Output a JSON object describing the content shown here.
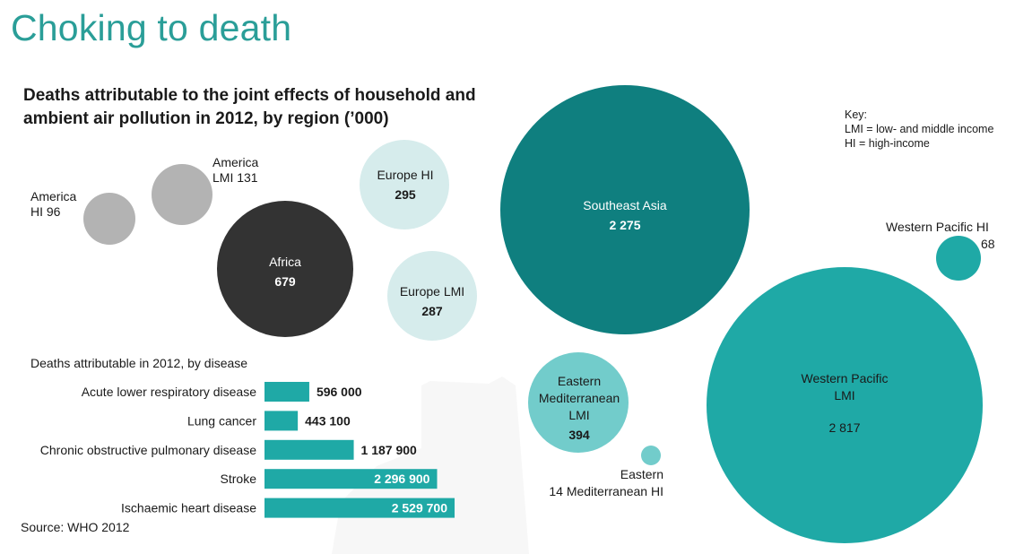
{
  "header": {
    "title": "Choking to death",
    "subtitle": "Deaths attributable to the joint effects of household and ambient air pollution in 2012, by region (’000)"
  },
  "key": {
    "heading": "Key:",
    "lmi": "LMI = low- and middle income",
    "hi": "HI = high-income"
  },
  "colors": {
    "teal_dark": "#0f7f7f",
    "teal_mid": "#1fa9a6",
    "teal_light": "#72cccb",
    "pale_blue": "#d6ecec",
    "grey": "#b3b3b3",
    "black": "#333333",
    "title": "#2a9e98"
  },
  "source": "Source: WHO 2012",
  "chart_data": [
    {
      "type": "bubble",
      "title": "Deaths attributable to the joint effects of household and ambient air pollution in 2012, by region (’000)",
      "unit": "'000 deaths",
      "regions": [
        {
          "name_lines": [
            "America",
            "HI 96"
          ],
          "label": "America HI",
          "value": 96,
          "value_text": "96"
        },
        {
          "name_lines": [
            "America",
            "LMI 131"
          ],
          "label": "America LMI",
          "value": 131,
          "value_text": "131"
        },
        {
          "name_lines": [
            "Africa"
          ],
          "label": "Africa",
          "value": 679,
          "value_text": "679"
        },
        {
          "name_lines": [
            "Europe HI"
          ],
          "label": "Europe HI",
          "value": 295,
          "value_text": "295"
        },
        {
          "name_lines": [
            "Europe LMI"
          ],
          "label": "Europe LMI",
          "value": 287,
          "value_text": "287"
        },
        {
          "name_lines": [
            "Southeast Asia"
          ],
          "label": "Southeast Asia",
          "value": 2275,
          "value_text": "2 275"
        },
        {
          "name_lines": [
            "Western Pacific HI"
          ],
          "label": "Western Pacific HI",
          "value": 68,
          "value_text": "68"
        },
        {
          "name_lines": [
            "Western Pacific",
            "LMI"
          ],
          "label": "Western Pacific LMI",
          "value": 2817,
          "value_text": "2 817"
        },
        {
          "name_lines": [
            "Eastern",
            "Mediterranean",
            "LMI"
          ],
          "label": "Eastern Mediterranean LMI",
          "value": 394,
          "value_text": "394"
        },
        {
          "name_lines": [
            "Eastern",
            "14  Mediterranean HI"
          ],
          "label": "Eastern Mediterranean HI",
          "value": 14,
          "value_text": "14"
        }
      ]
    },
    {
      "type": "bar",
      "orientation": "horizontal",
      "title": "Deaths attributable in 2012, by disease",
      "categories": [
        "Acute lower respiratory disease",
        "Lung cancer",
        "Chronic obstructive pulmonary disease",
        "Stroke",
        "Ischaemic heart disease"
      ],
      "values": [
        596000,
        443100,
        1187900,
        2296900,
        2529700
      ],
      "value_labels": [
        "596 000",
        "443 100",
        "1 187 900",
        "2 296 900",
        "2 529 700"
      ]
    }
  ]
}
